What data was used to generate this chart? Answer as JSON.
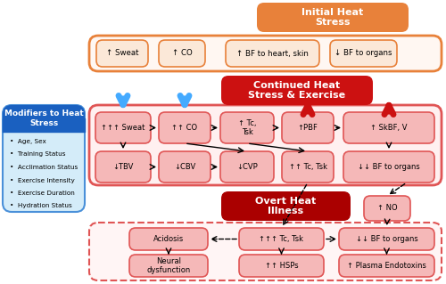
{
  "title_initial": "Initial Heat\nStress",
  "title_continued": "Continued Heat\nStress & Exercise",
  "title_overt": "Overt Heat\nIllness",
  "title_modifiers": "Modifiers to Heat\nStress",
  "modifiers_list": [
    "Age, Sex",
    "Training Status",
    "Acclimation Status",
    "Exercise Intensity",
    "Exercise Duration",
    "Hydration Status"
  ],
  "initial_boxes": [
    "↑ Sweat",
    "↑ CO",
    "↑ BF to heart, skin",
    "↓ BF to organs"
  ],
  "continued_row1": [
    "↑↑↑ Sweat",
    "↑↑ CO",
    "↑ Tc,\nTsk",
    "↑PBF",
    "↑ SkBF, V"
  ],
  "continued_row2": [
    "↓TBV",
    "↓CBV",
    "↓CVP",
    "↑↑ Tc, Tsk",
    "↓↓ BF to organs"
  ],
  "overt_row1": [
    "Acidosis",
    "↑↑↑ Tc, Tsk",
    "↓↓ BF to organs"
  ],
  "overt_row2": [
    "Neural\ndysfunction",
    "↑↑ HSPs",
    "↑ Plasma Endotoxins"
  ],
  "no_box": "↑ NO",
  "col_orange_title": "#e8813a",
  "col_orange_border": "#e8813a",
  "col_orange_box_bg": "#fbe8d8",
  "col_orange_section_bg": "#fff7f2",
  "col_red_title": "#cc1111",
  "col_dark_red_title": "#aa0000",
  "col_red_border": "#e05555",
  "col_red_box_bg": "#f5b8b8",
  "col_red_section_bg": "#fff0f0",
  "col_blue_title": "#1a60c0",
  "col_blue_section_bg": "#d4ecf9",
  "col_blue_border": "#4a90d9",
  "col_arrow_blue": "#44aaff",
  "col_arrow_red": "#cc1111",
  "col_white": "#ffffff",
  "col_black": "#111111"
}
